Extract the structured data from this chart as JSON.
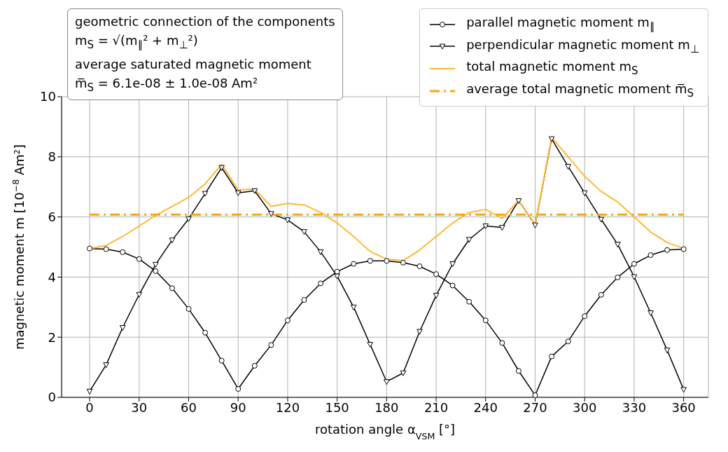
{
  "chart_data": {
    "type": "line",
    "xlabel": "rotation angle α$_{VSM}$ [°]",
    "ylabel": "magnetic moment m [10$^{−8}$ Am²]",
    "annotations": [
      "geometric connection of the components",
      "m$_{S}$ = √(m$_{∥}$² + m$_{⊥}$²)",
      "average saturated magnetic moment",
      "m̅$_{S}$ = 6.1e-08 ± 1.0e-08 Am²"
    ],
    "x": [
      0,
      10,
      20,
      30,
      40,
      50,
      60,
      70,
      80,
      90,
      100,
      110,
      120,
      130,
      140,
      150,
      160,
      170,
      180,
      190,
      200,
      210,
      220,
      230,
      240,
      250,
      260,
      270,
      280,
      290,
      300,
      310,
      320,
      330,
      340,
      350,
      360
    ],
    "series": [
      {
        "name": "parallel magnetic moment m$_{∥}$",
        "color": "#000000",
        "marker": "circle",
        "line_style": "solid",
        "values": [
          4.95,
          4.93,
          4.83,
          4.6,
          4.2,
          3.63,
          2.94,
          2.15,
          1.22,
          0.28,
          1.05,
          1.74,
          2.56,
          3.24,
          3.79,
          4.18,
          4.44,
          4.54,
          4.54,
          4.48,
          4.36,
          4.1,
          3.72,
          3.18,
          2.56,
          1.81,
          0.88,
          0.07,
          1.36,
          1.86,
          2.7,
          3.41,
          3.99,
          4.44,
          4.73,
          4.9,
          4.93
        ]
      },
      {
        "name": "perpendicular magnetic moment m$_{⊥}$",
        "color": "#000000",
        "marker": "triangle",
        "line_style": "solid",
        "values": [
          0.2,
          1.08,
          2.32,
          3.42,
          4.42,
          5.23,
          5.94,
          6.78,
          7.64,
          6.8,
          6.87,
          6.11,
          5.9,
          5.51,
          4.84,
          4.03,
          3.0,
          1.76,
          0.52,
          0.81,
          2.19,
          3.39,
          4.44,
          5.25,
          5.7,
          5.65,
          6.54,
          5.73,
          8.6,
          7.68,
          6.8,
          5.92,
          5.09,
          4.01,
          2.81,
          1.57,
          0.26
        ]
      },
      {
        "name": "total magnetic moment m$_{S}$",
        "color": "#ffb833",
        "marker": "none",
        "line_style": "solid",
        "values": [
          4.95,
          5.05,
          5.35,
          5.7,
          6.05,
          6.35,
          6.65,
          7.1,
          7.75,
          6.9,
          6.93,
          6.35,
          6.45,
          6.4,
          6.15,
          5.8,
          5.35,
          4.85,
          4.6,
          4.55,
          4.9,
          5.35,
          5.8,
          6.15,
          6.25,
          5.95,
          6.55,
          5.75,
          8.65,
          8.0,
          7.35,
          6.85,
          6.5,
          6.0,
          5.5,
          5.15,
          4.95
        ]
      },
      {
        "name": "average total magnetic moment m̅$_{S}$",
        "color": "#ffa500",
        "marker": "none",
        "line_style": "dashed",
        "x": [
          0,
          360
        ],
        "values": [
          6.08,
          6.08
        ]
      }
    ],
    "xlim": [
      -17,
      375
    ],
    "xticks": [
      0,
      30,
      60,
      90,
      120,
      150,
      180,
      210,
      240,
      270,
      300,
      330,
      360
    ],
    "ylim": [
      0,
      10
    ],
    "yticks": [
      0,
      2,
      4,
      6,
      8,
      10
    ],
    "grid": true,
    "legend": "top right"
  }
}
